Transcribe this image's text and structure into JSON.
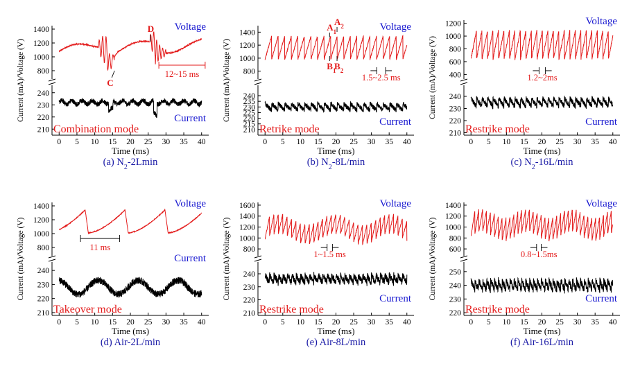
{
  "chart_data": [
    {
      "type": "line",
      "caption_prefix": "(a) N",
      "caption_sub": "2",
      "caption_suffix": "-2Lmin",
      "mode_label": "Combination mode",
      "xlabel": "Time (ms)",
      "ylabel": "Current (mA)/Voltage (V)",
      "xlim": [
        -2,
        42
      ],
      "xticks": [
        0,
        5,
        10,
        15,
        20,
        25,
        30,
        35,
        40
      ],
      "upper_ylim": [
        700,
        1450
      ],
      "upper_yticks": [
        800,
        1000,
        1200,
        1400
      ],
      "lower_ylim": [
        205,
        245
      ],
      "lower_yticks": [
        210,
        220,
        230,
        240
      ],
      "voltage_label": "Voltage",
      "current_label": "Current",
      "voltage_range_V": [
        850,
        1350
      ],
      "current_mean_mA": 232,
      "current_range_mA": [
        222,
        237
      ],
      "annotations": [
        {
          "text": "C",
          "x_ms": 14.2,
          "y_V": 820
        },
        {
          "text": "D",
          "x_ms": 25.6,
          "y_V": 1280
        },
        {
          "text": "12~15 ms",
          "x_ms_range": [
            28,
            41
          ]
        }
      ]
    },
    {
      "type": "line",
      "caption_prefix": "(b) N",
      "caption_sub": "2",
      "caption_suffix": "-8L/min",
      "mode_label": "Retrike mode",
      "xlabel": "Time (ms)",
      "ylabel": "Current (mA)/Voltage (V)",
      "xlim": [
        -2,
        42
      ],
      "xticks": [
        0,
        5,
        10,
        15,
        20,
        25,
        30,
        35,
        40
      ],
      "upper_ylim": [
        700,
        1500
      ],
      "upper_yticks": [
        800,
        1000,
        1200,
        1400
      ],
      "lower_ylim": [
        205,
        248
      ],
      "lower_yticks": [
        210,
        215,
        220,
        225,
        230,
        235,
        240
      ],
      "voltage_label": "Voltage",
      "current_label": "Current",
      "voltage_range_V": [
        950,
        1400
      ],
      "current_mean_mA": 230,
      "current_range_mA": [
        224,
        237
      ],
      "annotations": [
        {
          "text": "A",
          "sub": "1",
          "x_ms": 18.2
        },
        {
          "text": "A",
          "sub": "2",
          "x_ms": 20.3
        },
        {
          "text": "B",
          "sub": "1",
          "x_ms": 18.2
        },
        {
          "text": "B",
          "sub": "2",
          "x_ms": 20.3
        },
        {
          "text": "1.5~2.5 ms",
          "x_ms_range": [
            31.5,
            34
          ]
        }
      ]
    },
    {
      "type": "line",
      "caption_prefix": "(c) N",
      "caption_sub": "2",
      "caption_suffix": "-16L/min",
      "mode_label": "Restrike mode",
      "xlabel": "Time (ms)",
      "ylabel": "Current (mA)/Voltage (V)",
      "xlim": [
        -2,
        42
      ],
      "xticks": [
        0,
        5,
        10,
        15,
        20,
        25,
        30,
        35,
        40
      ],
      "upper_ylim": [
        350,
        1250
      ],
      "upper_yticks": [
        400,
        600,
        800,
        1000,
        1200
      ],
      "lower_ylim": [
        208,
        248
      ],
      "lower_yticks": [
        210,
        220,
        230,
        240
      ],
      "voltage_label": "Voltage",
      "current_label": "Current",
      "voltage_range_V": [
        600,
        1150
      ],
      "current_mean_mA": 235,
      "current_range_mA": [
        228,
        243
      ],
      "annotations": [
        {
          "text": "1.2~2ms",
          "x_ms_range": [
            19.2,
            21
          ]
        }
      ]
    },
    {
      "type": "line",
      "caption_prefix": "(d) Air-2L/min",
      "caption_sub": "",
      "caption_suffix": "",
      "mode_label": "Takeover mode",
      "xlabel": "Time (ms)",
      "ylabel": "Current (mA)/Voltage (V)",
      "xlim": [
        -2,
        42
      ],
      "xticks": [
        0,
        5,
        10,
        15,
        20,
        25,
        30,
        35,
        40
      ],
      "upper_ylim": [
        700,
        1450
      ],
      "upper_yticks": [
        800,
        1000,
        1200,
        1400
      ],
      "lower_ylim": [
        208,
        245
      ],
      "lower_yticks": [
        210,
        220,
        230,
        240
      ],
      "voltage_label": "Voltage",
      "current_label": "Current",
      "voltage_range_V": [
        1000,
        1400
      ],
      "current_mean_mA": 228,
      "current_range_mA": [
        221,
        235
      ],
      "annotations": [
        {
          "text": "11 ms",
          "x_ms_range": [
            6,
            17
          ]
        }
      ]
    },
    {
      "type": "line",
      "caption_prefix": "(e) Air-8L/min",
      "caption_sub": "",
      "caption_suffix": "",
      "mode_label": "Restrike mode",
      "xlabel": "Time (ms)",
      "ylabel": "Current (mA)/Voltage (V)",
      "xlim": [
        -2,
        42
      ],
      "xticks": [
        0,
        5,
        10,
        15,
        20,
        25,
        30,
        35,
        40
      ],
      "upper_ylim": [
        700,
        1650
      ],
      "upper_yticks": [
        800,
        1000,
        1200,
        1400,
        1600
      ],
      "lower_ylim": [
        208,
        248
      ],
      "lower_yticks": [
        210,
        220,
        230,
        240
      ],
      "voltage_label": "Voltage",
      "current_label": "Current",
      "voltage_range_V": [
        950,
        1500
      ],
      "current_mean_mA": 236,
      "current_range_mA": [
        229,
        244
      ],
      "annotations": [
        {
          "text": "1~1.5 ms",
          "x_ms_range": [
            17.5,
            19
          ]
        }
      ]
    },
    {
      "type": "line",
      "caption_prefix": "(f) Air-16L/min",
      "caption_sub": "",
      "caption_suffix": "",
      "mode_label": "Restrike mode",
      "xlabel": "Time (ms)",
      "ylabel": "Current (mA)/Voltage (V)",
      "xlim": [
        -2,
        42
      ],
      "xticks": [
        0,
        5,
        10,
        15,
        20,
        25,
        30,
        35,
        40
      ],
      "upper_ylim": [
        500,
        1450
      ],
      "upper_yticks": [
        600,
        800,
        1000,
        1200,
        1400
      ],
      "lower_ylim": [
        218,
        256
      ],
      "lower_yticks": [
        220,
        230,
        240,
        250
      ],
      "voltage_label": "Voltage",
      "current_label": "Current",
      "voltage_range_V": [
        800,
        1350
      ],
      "current_mean_mA": 240,
      "current_range_mA": [
        232,
        250
      ],
      "annotations": [
        {
          "text": "0.8~1.5ms",
          "x_ms_range": [
            18.5,
            19.8
          ]
        }
      ]
    }
  ],
  "colors": {
    "voltage": "#e31a1a",
    "current": "#000000",
    "label_blue": "#1a1ad0",
    "caption_blue": "#1a1aa6",
    "mode_red": "#e31a1a"
  }
}
